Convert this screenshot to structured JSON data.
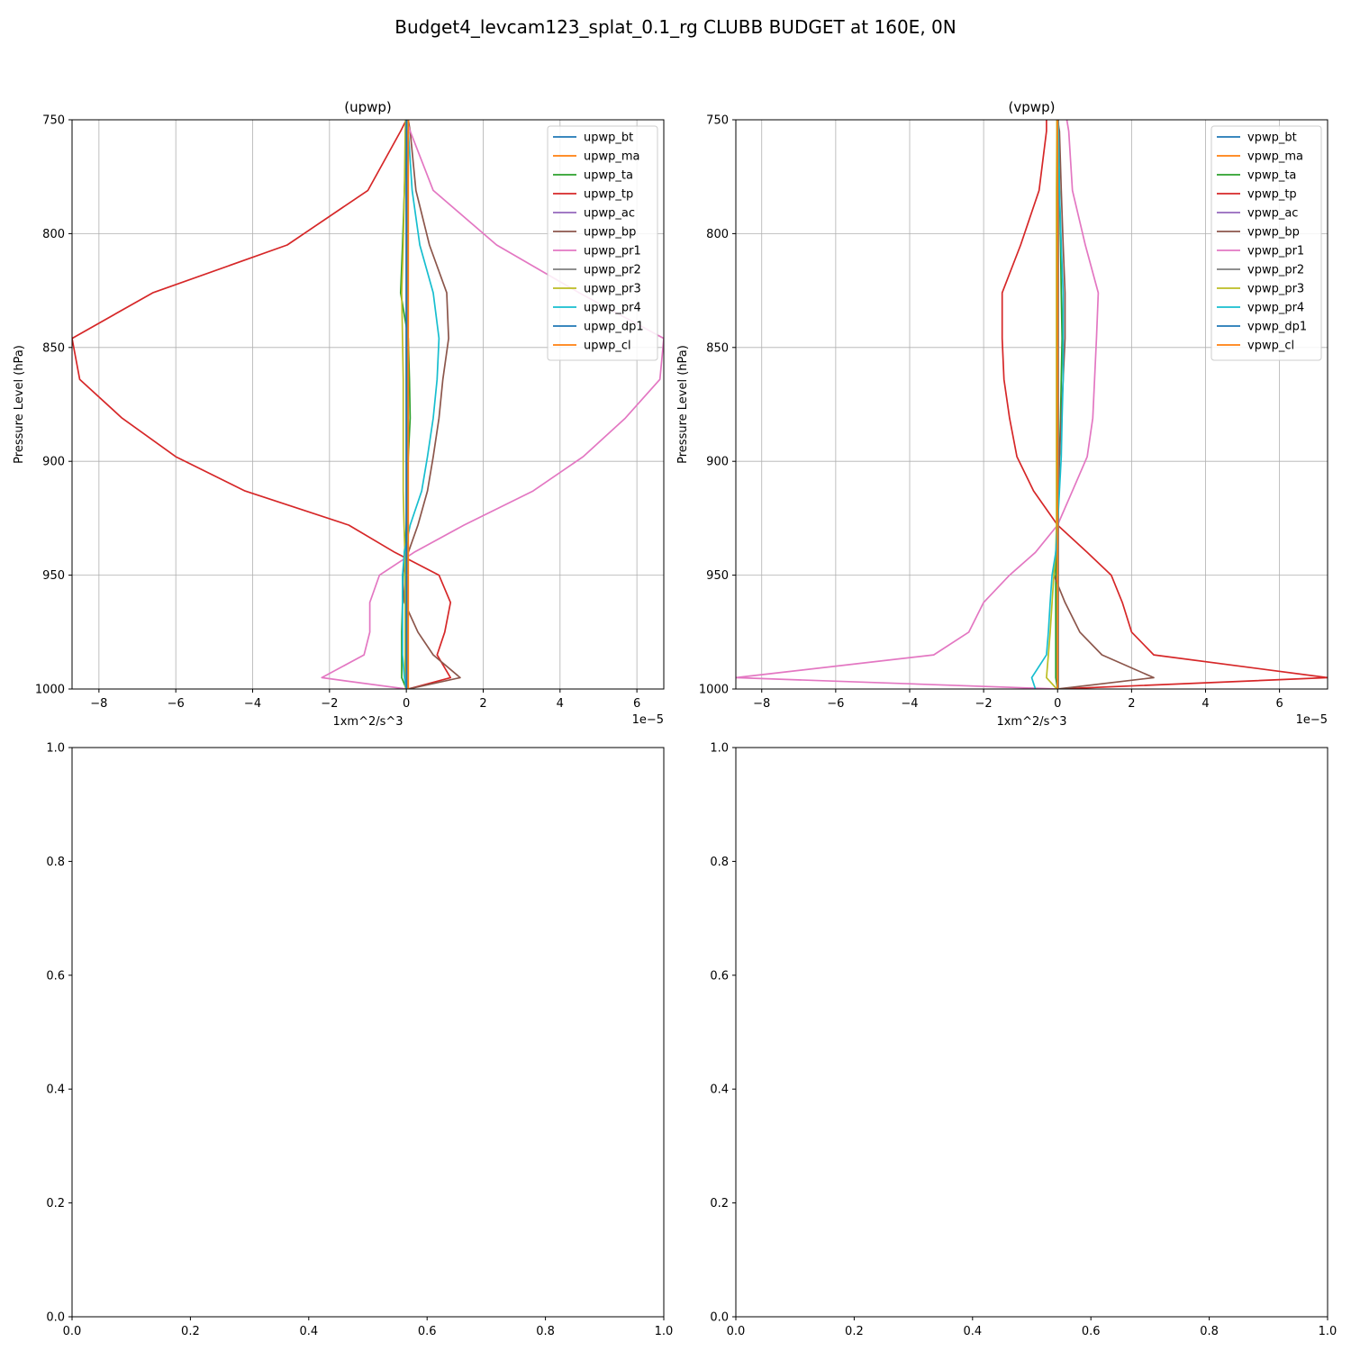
{
  "figure": {
    "title": "Budget4_levcam123_splat_0.1_rg CLUBB BUDGET at 160E, 0N"
  },
  "chart_data": [
    {
      "type": "line",
      "title": "(upwp)",
      "xlabel": "1xm^2/s^3",
      "ylabel": "Pressure Level (hPa)",
      "x_offset_label": "1e−5",
      "x_scale": 1e-05,
      "xlim": [
        -8.7,
        6.7
      ],
      "ylim": [
        1000,
        750
      ],
      "y_inverted": true,
      "grid": true,
      "legend_position": "upper right",
      "xticks": [
        -8,
        -6,
        -4,
        -2,
        0,
        2,
        4,
        6
      ],
      "xtick_labels": [
        "−8",
        "−6",
        "−4",
        "−2",
        "0",
        "2",
        "4",
        "6"
      ],
      "yticks": [
        750,
        800,
        850,
        900,
        950,
        1000
      ],
      "ytick_labels": [
        "750",
        "800",
        "850",
        "900",
        "950",
        "1000"
      ],
      "levels": [
        750,
        755,
        781,
        805,
        826,
        846,
        864,
        881,
        898,
        913,
        928,
        940,
        950,
        962,
        975,
        985,
        995,
        1000
      ],
      "series": [
        {
          "name": "upwp_bt",
          "color": "#1f77b4",
          "values": [
            0,
            0,
            0,
            0,
            0,
            0,
            0,
            0,
            0,
            0,
            0,
            0,
            0,
            0,
            0,
            0,
            0,
            0
          ]
        },
        {
          "name": "upwp_ma",
          "color": "#ff7f0e",
          "values": [
            0,
            0,
            0,
            0,
            0,
            0,
            0,
            0,
            0,
            0,
            0,
            0,
            0,
            0,
            0,
            0,
            0,
            0
          ]
        },
        {
          "name": "upwp_ta",
          "color": "#2ca02c",
          "values": [
            0.05,
            0.0,
            -0.05,
            -0.1,
            -0.15,
            0.05,
            0.08,
            0.1,
            0.05,
            0.03,
            0.0,
            -0.05,
            -0.08,
            -0.1,
            -0.12,
            -0.12,
            -0.12,
            0.0
          ]
        },
        {
          "name": "upwp_tp",
          "color": "#d62728",
          "values": [
            0.0,
            -0.15,
            -1.0,
            -3.1,
            -6.6,
            -8.7,
            -8.5,
            -7.4,
            -6.0,
            -4.2,
            -1.5,
            -0.3,
            0.85,
            1.15,
            1.0,
            0.8,
            1.15,
            0.05
          ]
        },
        {
          "name": "upwp_ac",
          "color": "#9467bd",
          "values": [
            0,
            0,
            0,
            0,
            0,
            0,
            0,
            0,
            0,
            0,
            0,
            0,
            0,
            0,
            0,
            0,
            0,
            0
          ]
        },
        {
          "name": "upwp_bp",
          "color": "#8c564b",
          "values": [
            0.05,
            0.1,
            0.25,
            0.6,
            1.05,
            1.1,
            0.95,
            0.85,
            0.7,
            0.55,
            0.3,
            0.05,
            -0.1,
            -0.05,
            0.3,
            0.7,
            1.4,
            0.05
          ]
        },
        {
          "name": "upwp_pr1",
          "color": "#e377c2",
          "values": [
            0.0,
            0.1,
            0.7,
            2.35,
            4.5,
            6.7,
            6.6,
            5.7,
            4.6,
            3.3,
            1.5,
            0.2,
            -0.7,
            -0.95,
            -0.95,
            -1.1,
            -2.2,
            0.0
          ]
        },
        {
          "name": "upwp_pr2",
          "color": "#7f7f7f",
          "values": [
            0.02,
            0.02,
            0.02,
            0.02,
            0.02,
            0.02,
            0.02,
            0.02,
            0.02,
            0.02,
            0.02,
            0.02,
            0.02,
            0.02,
            0.02,
            0.02,
            0.02,
            0.02
          ]
        },
        {
          "name": "upwp_pr3",
          "color": "#bcbd22",
          "values": [
            -0.02,
            -0.03,
            -0.05,
            -0.08,
            -0.12,
            -0.1,
            -0.08,
            -0.08,
            -0.08,
            -0.08,
            -0.06,
            -0.04,
            -0.03,
            -0.03,
            -0.03,
            -0.03,
            -0.04,
            -0.02
          ]
        },
        {
          "name": "upwp_pr4",
          "color": "#17becf",
          "values": [
            0.0,
            0.05,
            0.15,
            0.35,
            0.7,
            0.85,
            0.8,
            0.7,
            0.55,
            0.4,
            0.1,
            -0.05,
            -0.1,
            -0.1,
            -0.1,
            -0.1,
            -0.05,
            0.0
          ]
        },
        {
          "name": "upwp_dp1",
          "color": "#1f77b4",
          "values": [
            0,
            0,
            0,
            0,
            0,
            0,
            0,
            0,
            0,
            0,
            0,
            0,
            0,
            0,
            0,
            0,
            0,
            0
          ]
        },
        {
          "name": "upwp_cl",
          "color": "#ff7f0e",
          "values": [
            0.05,
            0.05,
            0.05,
            0.05,
            0.05,
            0.05,
            0.05,
            0.05,
            0.05,
            0.05,
            0.05,
            0.05,
            0.05,
            0.05,
            0.05,
            0.05,
            0.05,
            0.05
          ]
        }
      ]
    },
    {
      "type": "line",
      "title": "(vpwp)",
      "xlabel": "1xm^2/s^3",
      "ylabel": "Pressure Level (hPa)",
      "x_offset_label": "1e−5",
      "x_scale": 1e-05,
      "xlim": [
        -8.7,
        7.3
      ],
      "ylim": [
        1000,
        750
      ],
      "y_inverted": true,
      "grid": true,
      "legend_position": "upper right",
      "xticks": [
        -8,
        -6,
        -4,
        -2,
        0,
        2,
        4,
        6
      ],
      "xtick_labels": [
        "−8",
        "−6",
        "−4",
        "−2",
        "0",
        "2",
        "4",
        "6"
      ],
      "yticks": [
        750,
        800,
        850,
        900,
        950,
        1000
      ],
      "ytick_labels": [
        "750",
        "800",
        "850",
        "900",
        "950",
        "1000"
      ],
      "levels": [
        750,
        755,
        781,
        805,
        826,
        846,
        864,
        881,
        898,
        913,
        928,
        940,
        950,
        962,
        975,
        985,
        995,
        1000
      ],
      "series": [
        {
          "name": "vpwp_bt",
          "color": "#1f77b4",
          "values": [
            0,
            0,
            0,
            0,
            0,
            0,
            0,
            0,
            0,
            0,
            0,
            0,
            0,
            0,
            0,
            0,
            0,
            0
          ]
        },
        {
          "name": "vpwp_ma",
          "color": "#ff7f0e",
          "values": [
            0,
            0,
            0,
            0,
            0,
            0,
            0,
            0,
            0,
            0,
            0,
            0,
            0,
            0,
            0,
            0,
            0,
            0
          ]
        },
        {
          "name": "vpwp_ta",
          "color": "#2ca02c",
          "values": [
            0.02,
            0.03,
            0.05,
            0.08,
            0.1,
            0.12,
            0.1,
            0.08,
            0.05,
            0.03,
            0.0,
            -0.03,
            -0.05,
            -0.05,
            -0.05,
            -0.05,
            -0.05,
            0.0
          ]
        },
        {
          "name": "vpwp_tp",
          "color": "#d62728",
          "values": [
            -0.3,
            -0.3,
            -0.5,
            -1.0,
            -1.5,
            -1.5,
            -1.45,
            -1.3,
            -1.1,
            -0.65,
            0.0,
            0.8,
            1.45,
            1.75,
            2.0,
            2.6,
            7.3,
            0.0
          ]
        },
        {
          "name": "vpwp_ac",
          "color": "#9467bd",
          "values": [
            0,
            0,
            0,
            0,
            0,
            0,
            0,
            0,
            0,
            0,
            0,
            0,
            0,
            0,
            0,
            0,
            0,
            0
          ]
        },
        {
          "name": "vpwp_bp",
          "color": "#8c564b",
          "values": [
            0.0,
            0.05,
            0.1,
            0.15,
            0.2,
            0.2,
            0.15,
            0.1,
            0.05,
            0.02,
            0.0,
            -0.05,
            -0.1,
            0.2,
            0.6,
            1.2,
            2.6,
            0.0
          ]
        },
        {
          "name": "vpwp_pr1",
          "color": "#e377c2",
          "values": [
            0.25,
            0.3,
            0.4,
            0.75,
            1.1,
            1.05,
            1.0,
            0.95,
            0.8,
            0.4,
            0.0,
            -0.6,
            -1.3,
            -2.0,
            -2.4,
            -3.35,
            -8.7,
            0.0
          ]
        },
        {
          "name": "vpwp_pr2",
          "color": "#7f7f7f",
          "values": [
            0.02,
            0.02,
            0.02,
            0.02,
            0.02,
            0.02,
            0.02,
            0.02,
            0.02,
            0.02,
            0.02,
            0.02,
            0.02,
            0.02,
            0.02,
            0.02,
            0.02,
            0.02
          ]
        },
        {
          "name": "vpwp_pr3",
          "color": "#bcbd22",
          "values": [
            -0.02,
            -0.02,
            -0.03,
            -0.03,
            -0.03,
            -0.03,
            -0.03,
            -0.03,
            -0.03,
            -0.03,
            -0.03,
            -0.05,
            -0.1,
            -0.15,
            -0.2,
            -0.25,
            -0.3,
            -0.02
          ]
        },
        {
          "name": "vpwp_pr4",
          "color": "#17becf",
          "values": [
            0.0,
            0.02,
            0.05,
            0.1,
            0.15,
            0.15,
            0.15,
            0.12,
            0.1,
            0.05,
            0.0,
            -0.05,
            -0.15,
            -0.2,
            -0.25,
            -0.3,
            -0.7,
            -0.6
          ]
        },
        {
          "name": "vpwp_dp1",
          "color": "#1f77b4",
          "values": [
            0,
            0,
            0,
            0,
            0,
            0,
            0,
            0,
            0,
            0,
            0,
            0,
            0,
            0,
            0,
            0,
            0,
            0
          ]
        },
        {
          "name": "vpwp_cl",
          "color": "#ff7f0e",
          "values": [
            0.0,
            0.0,
            0.0,
            0.0,
            0.0,
            0.0,
            0.0,
            0.0,
            0.0,
            0.0,
            0.0,
            0.0,
            0.0,
            0.0,
            0.0,
            0.0,
            0.0,
            0.0
          ]
        }
      ]
    },
    {
      "type": "line",
      "title": "",
      "xlim": [
        0,
        1
      ],
      "ylim": [
        0,
        1
      ],
      "grid": false,
      "xticks": [
        0.0,
        0.2,
        0.4,
        0.6,
        0.8,
        1.0
      ],
      "xtick_labels": [
        "0.0",
        "0.2",
        "0.4",
        "0.6",
        "0.8",
        "1.0"
      ],
      "yticks": [
        0.0,
        0.2,
        0.4,
        0.6,
        0.8,
        1.0
      ],
      "ytick_labels": [
        "0.0",
        "0.2",
        "0.4",
        "0.6",
        "0.8",
        "1.0"
      ],
      "series": []
    },
    {
      "type": "line",
      "title": "",
      "xlim": [
        0,
        1
      ],
      "ylim": [
        0,
        1
      ],
      "grid": false,
      "xticks": [
        0.0,
        0.2,
        0.4,
        0.6,
        0.8,
        1.0
      ],
      "xtick_labels": [
        "0.0",
        "0.2",
        "0.4",
        "0.6",
        "0.8",
        "1.0"
      ],
      "yticks": [
        0.0,
        0.2,
        0.4,
        0.6,
        0.8,
        1.0
      ],
      "ytick_labels": [
        "0.0",
        "0.2",
        "0.4",
        "0.6",
        "0.8",
        "1.0"
      ],
      "series": []
    }
  ]
}
